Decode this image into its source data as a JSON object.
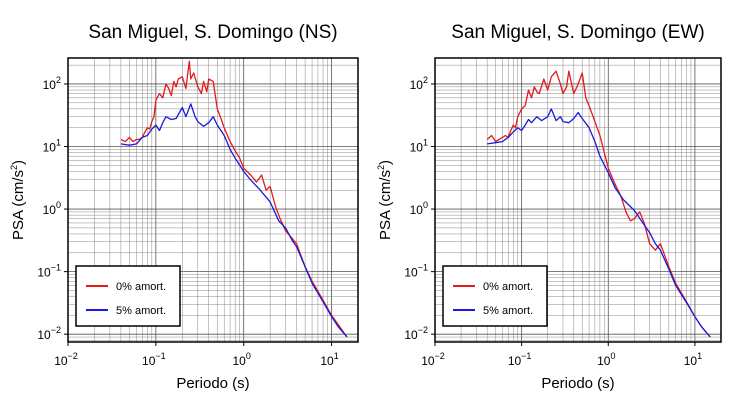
{
  "chart_data": [
    {
      "type": "line",
      "title": "San Miguel, S. Domingo (NS)",
      "xlabel": "Periodo (s)",
      "ylabel_main": "PSA (cm/s",
      "ylabel_sup": "2",
      "ylabel_tail": ")",
      "x_scale": "log",
      "y_scale": "log",
      "xlim": [
        0.01,
        20
      ],
      "ylim": [
        0.0075,
        260
      ],
      "grid": true,
      "legend_position": "bottom-left",
      "x_ticks": [
        {
          "value": 0.01,
          "base": "10",
          "exp": "−2"
        },
        {
          "value": 0.1,
          "base": "10",
          "exp": "−1"
        },
        {
          "value": 1,
          "base": "10",
          "exp": "0"
        },
        {
          "value": 10,
          "base": "10",
          "exp": "1"
        }
      ],
      "y_ticks": [
        {
          "value": 0.01,
          "base": "10",
          "exp": "−2"
        },
        {
          "value": 0.1,
          "base": "10",
          "exp": "−1"
        },
        {
          "value": 1,
          "base": "10",
          "exp": "0"
        },
        {
          "value": 10,
          "base": "10",
          "exp": "1"
        },
        {
          "value": 100,
          "base": "10",
          "exp": "2"
        }
      ],
      "series": [
        {
          "name": "0% amort.",
          "color": "#e41a1c",
          "x": [
            0.04,
            0.045,
            0.05,
            0.055,
            0.06,
            0.065,
            0.07,
            0.075,
            0.08,
            0.085,
            0.09,
            0.095,
            0.1,
            0.11,
            0.12,
            0.13,
            0.14,
            0.15,
            0.16,
            0.17,
            0.18,
            0.2,
            0.22,
            0.24,
            0.25,
            0.27,
            0.3,
            0.33,
            0.35,
            0.38,
            0.4,
            0.45,
            0.5,
            0.55,
            0.6,
            0.7,
            0.8,
            0.9,
            1.0,
            1.2,
            1.4,
            1.6,
            1.8,
            2.0,
            2.3,
            2.6,
            3.0,
            3.5,
            4.0,
            5.0,
            6.0,
            8.0,
            10.0,
            12.0,
            15.0
          ],
          "y": [
            13,
            12,
            14,
            12,
            13,
            13,
            14,
            17,
            20,
            19,
            25,
            30,
            55,
            70,
            60,
            100,
            85,
            65,
            110,
            90,
            120,
            130,
            85,
            230,
            120,
            150,
            90,
            70,
            110,
            75,
            120,
            110,
            40,
            28,
            20,
            12,
            8.5,
            6.5,
            4.5,
            3.5,
            2.7,
            3.5,
            2.0,
            2.3,
            1.1,
            0.7,
            0.45,
            0.35,
            0.28,
            0.12,
            0.07,
            0.035,
            0.02,
            0.014,
            0.009
          ]
        },
        {
          "name": "5% amort.",
          "color": "#1a1adc",
          "x": [
            0.04,
            0.05,
            0.06,
            0.07,
            0.08,
            0.09,
            0.1,
            0.11,
            0.12,
            0.13,
            0.15,
            0.17,
            0.2,
            0.22,
            0.25,
            0.28,
            0.3,
            0.35,
            0.4,
            0.45,
            0.5,
            0.6,
            0.7,
            0.8,
            1.0,
            1.2,
            1.5,
            2.0,
            2.5,
            3.0,
            3.5,
            4.0,
            5.0,
            6.0,
            8.0,
            10.0,
            12.0,
            15.0
          ],
          "y": [
            11,
            10.5,
            11,
            14,
            15,
            19,
            22,
            18,
            24,
            30,
            27,
            28,
            42,
            30,
            48,
            30,
            25,
            21,
            24,
            30,
            22,
            15,
            9,
            6.5,
            4,
            2.9,
            2.1,
            1.3,
            0.65,
            0.5,
            0.33,
            0.25,
            0.12,
            0.065,
            0.033,
            0.019,
            0.013,
            0.009
          ]
        }
      ]
    },
    {
      "type": "line",
      "title": "San Miguel, S. Domingo (EW)",
      "xlabel": "Periodo (s)",
      "ylabel_main": "PSA (cm/s",
      "ylabel_sup": "2",
      "ylabel_tail": ")",
      "x_scale": "log",
      "y_scale": "log",
      "xlim": [
        0.01,
        20
      ],
      "ylim": [
        0.0075,
        260
      ],
      "grid": true,
      "legend_position": "bottom-left",
      "x_ticks": [
        {
          "value": 0.01,
          "base": "10",
          "exp": "−2"
        },
        {
          "value": 0.1,
          "base": "10",
          "exp": "−1"
        },
        {
          "value": 1,
          "base": "10",
          "exp": "0"
        },
        {
          "value": 10,
          "base": "10",
          "exp": "1"
        }
      ],
      "y_ticks": [
        {
          "value": 0.01,
          "base": "10",
          "exp": "−2"
        },
        {
          "value": 0.1,
          "base": "10",
          "exp": "−1"
        },
        {
          "value": 1,
          "base": "10",
          "exp": "0"
        },
        {
          "value": 10,
          "base": "10",
          "exp": "1"
        },
        {
          "value": 100,
          "base": "10",
          "exp": "2"
        }
      ],
      "series": [
        {
          "name": "0% amort.",
          "color": "#e41a1c",
          "x": [
            0.04,
            0.045,
            0.05,
            0.055,
            0.06,
            0.065,
            0.07,
            0.075,
            0.08,
            0.085,
            0.09,
            0.1,
            0.11,
            0.12,
            0.13,
            0.14,
            0.15,
            0.16,
            0.18,
            0.2,
            0.22,
            0.25,
            0.28,
            0.3,
            0.33,
            0.35,
            0.38,
            0.4,
            0.45,
            0.5,
            0.55,
            0.6,
            0.7,
            0.8,
            0.9,
            1.0,
            1.2,
            1.4,
            1.6,
            1.8,
            2.0,
            2.3,
            2.6,
            3.0,
            3.5,
            4.0,
            5.0,
            6.0,
            8.0,
            10.0,
            12.0,
            15.0
          ],
          "y": [
            13,
            15,
            12,
            13,
            14,
            15,
            14,
            18,
            22,
            20,
            30,
            40,
            45,
            80,
            60,
            90,
            75,
            70,
            120,
            80,
            130,
            160,
            100,
            70,
            90,
            160,
            95,
            70,
            100,
            150,
            60,
            45,
            25,
            15,
            8,
            4.5,
            2.5,
            1.6,
            0.9,
            0.65,
            0.7,
            0.9,
            0.6,
            0.28,
            0.22,
            0.28,
            0.12,
            0.065,
            0.033,
            0.019,
            0.013,
            0.009
          ]
        },
        {
          "name": "5% amort.",
          "color": "#1a1adc",
          "x": [
            0.04,
            0.05,
            0.06,
            0.07,
            0.08,
            0.09,
            0.1,
            0.11,
            0.12,
            0.13,
            0.15,
            0.17,
            0.2,
            0.22,
            0.25,
            0.28,
            0.3,
            0.35,
            0.4,
            0.45,
            0.5,
            0.6,
            0.7,
            0.8,
            1.0,
            1.2,
            1.5,
            2.0,
            2.5,
            3.0,
            3.5,
            4.0,
            5.0,
            6.0,
            8.0,
            10.0,
            12.0,
            15.0
          ],
          "y": [
            11,
            11.5,
            12,
            14,
            17,
            20,
            18,
            22,
            27,
            24,
            30,
            26,
            30,
            40,
            26,
            30,
            25,
            24,
            28,
            35,
            28,
            20,
            12,
            7,
            3.8,
            2.2,
            1.4,
            0.95,
            0.6,
            0.42,
            0.28,
            0.22,
            0.11,
            0.06,
            0.032,
            0.019,
            0.013,
            0.009
          ]
        }
      ]
    }
  ]
}
